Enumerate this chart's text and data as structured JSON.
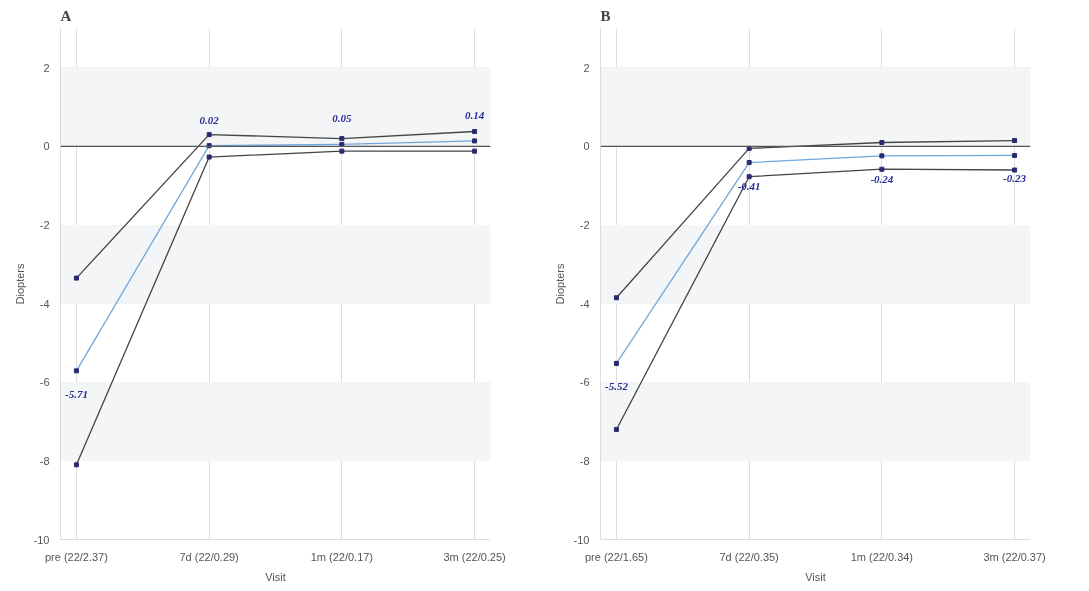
{
  "chart_data": [
    {
      "type": "line",
      "title": "A",
      "xlabel": "Visit",
      "ylabel": "Diopters",
      "categories": [
        "pre (22/2.37)",
        "7d (22/0.29)",
        "1m (22/0.17)",
        "3m (22/0.25)"
      ],
      "series": [
        {
          "color": "#444444",
          "values": [
            -3.35,
            0.3,
            0.2,
            0.38
          ]
        },
        {
          "color": "#6fa8dc",
          "values": [
            -5.71,
            0.02,
            0.05,
            0.14
          ],
          "value_labels": [
            "-5.71",
            "0.02",
            "0.05",
            "0.14"
          ]
        },
        {
          "color": "#444444",
          "values": [
            -8.1,
            -0.27,
            -0.12,
            -0.12
          ]
        }
      ],
      "ylim": [
        -10,
        3
      ],
      "yticks": [
        -10,
        -8,
        -6,
        -4,
        -2,
        0,
        2
      ],
      "grid": true,
      "marker": "square",
      "line_style": "solid",
      "ref_lines": [
        {
          "axis": "y",
          "value": 0,
          "color": "#555555"
        }
      ],
      "bands": [
        {
          "axis": "y",
          "from": 0,
          "to": 2,
          "color": "#f4f5f6"
        },
        {
          "axis": "y",
          "from": -4,
          "to": -2,
          "color": "#f4f5f6"
        },
        {
          "axis": "y",
          "from": -8,
          "to": -6,
          "color": "#f4f5f6"
        }
      ]
    },
    {
      "type": "line",
      "title": "B",
      "xlabel": "Visit",
      "ylabel": "Diopters",
      "categories": [
        "pre (22/1.65)",
        "7d (22/0.35)",
        "1m (22/0.34)",
        "3m (22/0.37)"
      ],
      "series": [
        {
          "color": "#444444",
          "values": [
            -3.85,
            -0.05,
            0.1,
            0.15
          ]
        },
        {
          "color": "#6fa8dc",
          "values": [
            -5.52,
            -0.41,
            -0.24,
            -0.23
          ],
          "value_labels": [
            "-5.52",
            "-0.41",
            "-0.24",
            "-0.23"
          ]
        },
        {
          "color": "#444444",
          "values": [
            -7.2,
            -0.77,
            -0.58,
            -0.6
          ]
        }
      ],
      "ylim": [
        -10,
        3
      ],
      "yticks": [
        -10,
        -8,
        -6,
        -4,
        -2,
        0,
        2
      ],
      "grid": true,
      "marker": "square",
      "line_style": "solid",
      "ref_lines": [
        {
          "axis": "y",
          "value": 0,
          "color": "#555555"
        }
      ],
      "bands": [
        {
          "axis": "y",
          "from": 0,
          "to": 2,
          "color": "#f4f5f6"
        },
        {
          "axis": "y",
          "from": -4,
          "to": -2,
          "color": "#f4f5f6"
        },
        {
          "axis": "y",
          "from": -8,
          "to": -6,
          "color": "#f4f5f6"
        }
      ]
    }
  ]
}
